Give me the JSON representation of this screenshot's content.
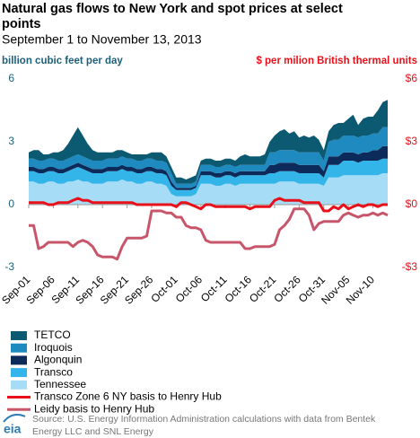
{
  "chart_data": {
    "type": "stacked-area-line",
    "title": [
      "Natural gas flows to New York and spot prices at select",
      "points"
    ],
    "subtitle": "September 1 to November 13, 2013",
    "y_label": "billion cubic feet per day",
    "y2_label": "$ per milion British thermal units",
    "source": [
      "Source: U.S. Energy Information Administration calculations with data from Bentek",
      "Energy LLC and SNL Energy"
    ],
    "logo": "eia",
    "categories": [
      "Sep-01",
      null,
      null,
      null,
      null,
      "Sep-06",
      null,
      null,
      null,
      null,
      "Sep-11",
      null,
      null,
      null,
      null,
      "Sep-16",
      null,
      null,
      null,
      null,
      "Sep-21",
      null,
      null,
      null,
      null,
      "Sep-26",
      null,
      null,
      null,
      null,
      "Oct-01",
      null,
      null,
      null,
      null,
      "Oct-06",
      null,
      null,
      null,
      null,
      "Oct-11",
      null,
      null,
      null,
      null,
      "Oct-16",
      null,
      null,
      null,
      null,
      "Oct-21",
      null,
      null,
      null,
      null,
      "Oct-26",
      null,
      null,
      null,
      null,
      "Oct-31",
      null,
      null,
      null,
      null,
      "Nov-05",
      null,
      null,
      null,
      null,
      "Nov-10",
      null,
      null,
      null
    ],
    "ylim": [
      -3,
      6
    ],
    "yticks": [
      -3,
      0,
      3,
      6
    ],
    "y2lim": [
      -3,
      6
    ],
    "y2ticks": [
      {
        "value": -3,
        "label": "-$3"
      },
      {
        "value": 0,
        "label": "$0"
      },
      {
        "value": 3,
        "label": "$3"
      },
      {
        "value": 6,
        "label": "$6"
      }
    ],
    "series": [
      {
        "name": "Tennessee",
        "kind": "area",
        "color": "#a6dcf5",
        "values": [
          1.1,
          1.1,
          1.0,
          1.0,
          1.1,
          1.1,
          1.0,
          1.0,
          1.1,
          1.1,
          1.2,
          1.1,
          1.1,
          1.0,
          1.0,
          1.0,
          1.1,
          1.1,
          1.1,
          1.2,
          1.1,
          1.1,
          1.0,
          1.0,
          1.1,
          1.1,
          1.0,
          1.0,
          0.9,
          0.5,
          0.4,
          0.4,
          0.4,
          0.4,
          0.5,
          1.0,
          1.0,
          1.0,
          0.9,
          0.9,
          1.0,
          1.0,
          0.9,
          1.0,
          1.0,
          1.0,
          1.0,
          1.0,
          1.0,
          1.0,
          1.0,
          1.1,
          1.1,
          1.1,
          1.1,
          1.0,
          1.0,
          1.0,
          1.0,
          1.0,
          0.9,
          1.3,
          1.3,
          1.3,
          1.4,
          1.4,
          1.4,
          1.4,
          1.4,
          1.4,
          1.4,
          1.4,
          1.5,
          1.5
        ]
      },
      {
        "name": "Transco",
        "kind": "area",
        "color": "#33b5ea",
        "values": [
          0.5,
          0.5,
          0.5,
          0.5,
          0.5,
          0.5,
          0.5,
          0.5,
          0.5,
          0.6,
          0.6,
          0.6,
          0.5,
          0.5,
          0.5,
          0.5,
          0.5,
          0.5,
          0.5,
          0.5,
          0.5,
          0.5,
          0.5,
          0.5,
          0.5,
          0.5,
          0.5,
          0.5,
          0.5,
          0.4,
          0.3,
          0.3,
          0.3,
          0.3,
          0.3,
          0.4,
          0.4,
          0.4,
          0.4,
          0.4,
          0.4,
          0.4,
          0.4,
          0.4,
          0.4,
          0.4,
          0.4,
          0.4,
          0.4,
          0.5,
          0.5,
          0.5,
          0.5,
          0.5,
          0.5,
          0.5,
          0.5,
          0.5,
          0.5,
          0.5,
          0.4,
          0.6,
          0.6,
          0.6,
          0.7,
          0.7,
          0.7,
          0.6,
          0.7,
          0.7,
          0.7,
          0.7,
          0.7,
          0.7
        ]
      },
      {
        "name": "Algonquin",
        "kind": "area",
        "color": "#0d2b5a",
        "values": [
          0.2,
          0.2,
          0.2,
          0.2,
          0.2,
          0.2,
          0.2,
          0.2,
          0.2,
          0.2,
          0.2,
          0.2,
          0.2,
          0.2,
          0.2,
          0.2,
          0.2,
          0.2,
          0.2,
          0.2,
          0.2,
          0.2,
          0.2,
          0.2,
          0.2,
          0.2,
          0.2,
          0.2,
          0.2,
          0.2,
          0.1,
          0.1,
          0.1,
          0.1,
          0.1,
          0.2,
          0.2,
          0.2,
          0.2,
          0.2,
          0.2,
          0.2,
          0.2,
          0.2,
          0.2,
          0.2,
          0.2,
          0.2,
          0.2,
          0.4,
          0.4,
          0.4,
          0.4,
          0.4,
          0.4,
          0.4,
          0.4,
          0.4,
          0.4,
          0.4,
          0.3,
          0.4,
          0.4,
          0.4,
          0.4,
          0.4,
          0.4,
          0.4,
          0.4,
          0.4,
          0.5,
          0.5,
          0.6,
          0.6
        ]
      },
      {
        "name": "Iroquois",
        "kind": "area",
        "color": "#1f8ac0",
        "values": [
          0.4,
          0.4,
          0.4,
          0.4,
          0.4,
          0.4,
          0.4,
          0.4,
          0.4,
          0.4,
          0.4,
          0.4,
          0.4,
          0.4,
          0.4,
          0.4,
          0.4,
          0.4,
          0.4,
          0.4,
          0.4,
          0.4,
          0.4,
          0.4,
          0.4,
          0.4,
          0.4,
          0.4,
          0.4,
          0.4,
          0.2,
          0.2,
          0.2,
          0.2,
          0.2,
          0.3,
          0.3,
          0.3,
          0.3,
          0.3,
          0.3,
          0.3,
          0.3,
          0.3,
          0.3,
          0.3,
          0.3,
          0.3,
          0.3,
          0.6,
          0.6,
          0.6,
          0.6,
          0.6,
          0.6,
          0.6,
          0.6,
          0.6,
          0.6,
          0.6,
          0.5,
          0.7,
          0.8,
          0.8,
          0.8,
          0.8,
          0.8,
          0.8,
          0.8,
          0.8,
          0.8,
          0.8,
          0.9,
          0.9
        ]
      },
      {
        "name": "TETCO",
        "kind": "area",
        "color": "#0b5a72",
        "values": [
          0.3,
          0.4,
          0.5,
          0.3,
          0.2,
          0.3,
          0.4,
          0.5,
          0.7,
          1.0,
          1.3,
          1.0,
          0.7,
          0.5,
          0.4,
          0.4,
          0.3,
          0.3,
          0.4,
          0.3,
          0.3,
          0.2,
          0.3,
          0.3,
          0.2,
          0.3,
          0.4,
          0.4,
          0.3,
          0.3,
          0.3,
          0.3,
          0.2,
          0.3,
          0.3,
          0.2,
          0.3,
          0.3,
          0.3,
          0.3,
          0.3,
          0.3,
          0.3,
          0.4,
          0.5,
          0.4,
          0.4,
          0.4,
          0.5,
          0.5,
          0.8,
          0.9,
          1.0,
          0.8,
          0.9,
          0.7,
          0.8,
          0.7,
          0.8,
          0.6,
          0.5,
          0.5,
          0.7,
          0.8,
          0.6,
          0.8,
          1.0,
          0.6,
          0.8,
          0.9,
          0.8,
          1.1,
          1.2,
          1.3
        ]
      },
      {
        "name": "Transco Zone 6 NY basis to Henry Hub",
        "kind": "line",
        "axis": "y2",
        "color": "#e8101a",
        "values": [
          0.1,
          0.1,
          0.1,
          0.1,
          0.0,
          0.0,
          0.1,
          0.1,
          0.1,
          0.2,
          0.3,
          0.2,
          0.2,
          0.1,
          0.1,
          0.1,
          0.1,
          0.1,
          0.1,
          0.1,
          0.1,
          0.1,
          0.0,
          0.0,
          0.0,
          0.0,
          0.0,
          0.0,
          0.0,
          0.0,
          -0.1,
          0.1,
          0.1,
          0.0,
          -0.1,
          -0.2,
          0.0,
          0.0,
          -0.1,
          -0.1,
          -0.1,
          -0.1,
          -0.1,
          -0.1,
          -0.1,
          -0.2,
          -0.1,
          -0.1,
          -0.1,
          -0.1,
          0.2,
          0.3,
          0.2,
          0.2,
          0.2,
          0.2,
          0.1,
          0.1,
          0.1,
          0.1,
          -0.3,
          -0.3,
          -0.1,
          -0.2,
          0.0,
          -0.2,
          -0.1,
          0.0,
          -0.1,
          0.0,
          0.0,
          -0.1,
          0.0,
          0.0
        ]
      },
      {
        "name": "Leidy basis to Henry Hub",
        "kind": "line",
        "axis": "y2",
        "color": "#c8566b",
        "values": [
          -1.0,
          -1.0,
          -2.1,
          -2.0,
          -1.8,
          -1.8,
          -1.8,
          -1.8,
          -1.8,
          -2.0,
          -1.8,
          -1.7,
          -1.8,
          -2.0,
          -2.4,
          -2.5,
          -2.5,
          -2.5,
          -2.6,
          -2.0,
          -1.6,
          -1.6,
          -1.6,
          -1.6,
          -1.5,
          -0.3,
          -0.3,
          -0.3,
          -0.4,
          -0.4,
          -0.6,
          -0.6,
          -1.0,
          -1.1,
          -1.1,
          -1.2,
          -1.7,
          -1.8,
          -1.8,
          -1.8,
          -1.8,
          -1.8,
          -1.8,
          -1.8,
          -2.1,
          -2.1,
          -2.0,
          -2.0,
          -2.0,
          -2.0,
          -1.9,
          -1.2,
          -1.0,
          -0.7,
          -0.2,
          -0.2,
          -0.2,
          -0.5,
          -1.2,
          -0.9,
          -0.8,
          -0.8,
          -0.8,
          -0.8,
          -0.5,
          -0.4,
          -0.5,
          -0.6,
          -0.5,
          -0.5,
          -0.4,
          -0.5,
          -0.4,
          -0.5
        ]
      }
    ],
    "legend_order": [
      4,
      3,
      2,
      1,
      0,
      5,
      6
    ]
  }
}
